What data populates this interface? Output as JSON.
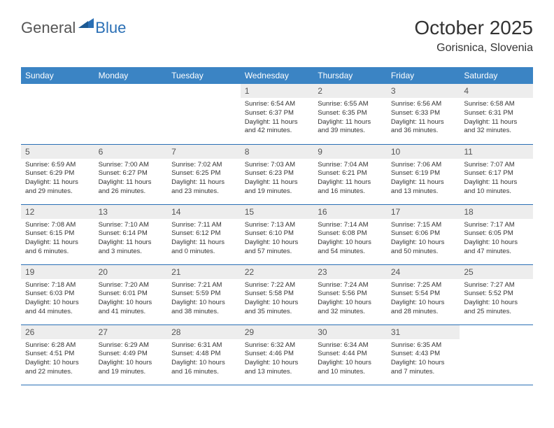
{
  "logo": {
    "general": "General",
    "blue": "Blue"
  },
  "title": "October 2025",
  "location": "Gorisnica, Slovenia",
  "colors": {
    "header_bg": "#3b84c4",
    "header_text": "#ffffff",
    "daynum_bg": "#ededed",
    "border": "#2a6fb5",
    "logo_gray": "#555555",
    "logo_blue": "#2a6fb5",
    "body_text": "#333333",
    "background": "#ffffff"
  },
  "typography": {
    "title_fontsize": 28,
    "location_fontsize": 16,
    "header_fontsize": 12,
    "daynum_fontsize": 12,
    "body_fontsize": 9.5
  },
  "day_headers": [
    "Sunday",
    "Monday",
    "Tuesday",
    "Wednesday",
    "Thursday",
    "Friday",
    "Saturday"
  ],
  "weeks": [
    [
      null,
      null,
      null,
      {
        "n": "1",
        "sr": "6:54 AM",
        "ss": "6:37 PM",
        "dl": "11 hours and 42 minutes."
      },
      {
        "n": "2",
        "sr": "6:55 AM",
        "ss": "6:35 PM",
        "dl": "11 hours and 39 minutes."
      },
      {
        "n": "3",
        "sr": "6:56 AM",
        "ss": "6:33 PM",
        "dl": "11 hours and 36 minutes."
      },
      {
        "n": "4",
        "sr": "6:58 AM",
        "ss": "6:31 PM",
        "dl": "11 hours and 32 minutes."
      }
    ],
    [
      {
        "n": "5",
        "sr": "6:59 AM",
        "ss": "6:29 PM",
        "dl": "11 hours and 29 minutes."
      },
      {
        "n": "6",
        "sr": "7:00 AM",
        "ss": "6:27 PM",
        "dl": "11 hours and 26 minutes."
      },
      {
        "n": "7",
        "sr": "7:02 AM",
        "ss": "6:25 PM",
        "dl": "11 hours and 23 minutes."
      },
      {
        "n": "8",
        "sr": "7:03 AM",
        "ss": "6:23 PM",
        "dl": "11 hours and 19 minutes."
      },
      {
        "n": "9",
        "sr": "7:04 AM",
        "ss": "6:21 PM",
        "dl": "11 hours and 16 minutes."
      },
      {
        "n": "10",
        "sr": "7:06 AM",
        "ss": "6:19 PM",
        "dl": "11 hours and 13 minutes."
      },
      {
        "n": "11",
        "sr": "7:07 AM",
        "ss": "6:17 PM",
        "dl": "11 hours and 10 minutes."
      }
    ],
    [
      {
        "n": "12",
        "sr": "7:08 AM",
        "ss": "6:15 PM",
        "dl": "11 hours and 6 minutes."
      },
      {
        "n": "13",
        "sr": "7:10 AM",
        "ss": "6:14 PM",
        "dl": "11 hours and 3 minutes."
      },
      {
        "n": "14",
        "sr": "7:11 AM",
        "ss": "6:12 PM",
        "dl": "11 hours and 0 minutes."
      },
      {
        "n": "15",
        "sr": "7:13 AM",
        "ss": "6:10 PM",
        "dl": "10 hours and 57 minutes."
      },
      {
        "n": "16",
        "sr": "7:14 AM",
        "ss": "6:08 PM",
        "dl": "10 hours and 54 minutes."
      },
      {
        "n": "17",
        "sr": "7:15 AM",
        "ss": "6:06 PM",
        "dl": "10 hours and 50 minutes."
      },
      {
        "n": "18",
        "sr": "7:17 AM",
        "ss": "6:05 PM",
        "dl": "10 hours and 47 minutes."
      }
    ],
    [
      {
        "n": "19",
        "sr": "7:18 AM",
        "ss": "6:03 PM",
        "dl": "10 hours and 44 minutes."
      },
      {
        "n": "20",
        "sr": "7:20 AM",
        "ss": "6:01 PM",
        "dl": "10 hours and 41 minutes."
      },
      {
        "n": "21",
        "sr": "7:21 AM",
        "ss": "5:59 PM",
        "dl": "10 hours and 38 minutes."
      },
      {
        "n": "22",
        "sr": "7:22 AM",
        "ss": "5:58 PM",
        "dl": "10 hours and 35 minutes."
      },
      {
        "n": "23",
        "sr": "7:24 AM",
        "ss": "5:56 PM",
        "dl": "10 hours and 32 minutes."
      },
      {
        "n": "24",
        "sr": "7:25 AM",
        "ss": "5:54 PM",
        "dl": "10 hours and 28 minutes."
      },
      {
        "n": "25",
        "sr": "7:27 AM",
        "ss": "5:52 PM",
        "dl": "10 hours and 25 minutes."
      }
    ],
    [
      {
        "n": "26",
        "sr": "6:28 AM",
        "ss": "4:51 PM",
        "dl": "10 hours and 22 minutes."
      },
      {
        "n": "27",
        "sr": "6:29 AM",
        "ss": "4:49 PM",
        "dl": "10 hours and 19 minutes."
      },
      {
        "n": "28",
        "sr": "6:31 AM",
        "ss": "4:48 PM",
        "dl": "10 hours and 16 minutes."
      },
      {
        "n": "29",
        "sr": "6:32 AM",
        "ss": "4:46 PM",
        "dl": "10 hours and 13 minutes."
      },
      {
        "n": "30",
        "sr": "6:34 AM",
        "ss": "4:44 PM",
        "dl": "10 hours and 10 minutes."
      },
      {
        "n": "31",
        "sr": "6:35 AM",
        "ss": "4:43 PM",
        "dl": "10 hours and 7 minutes."
      },
      null
    ]
  ],
  "labels": {
    "sunrise": "Sunrise:",
    "sunset": "Sunset:",
    "daylight": "Daylight:"
  }
}
